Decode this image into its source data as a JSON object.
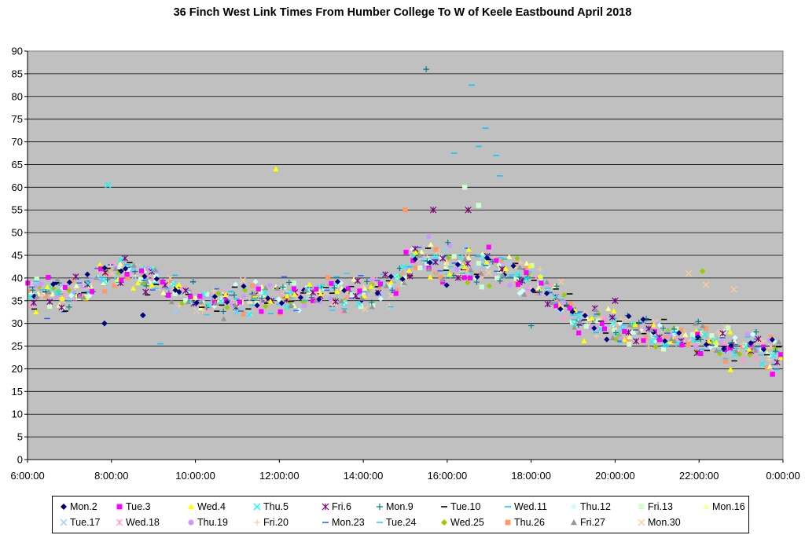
{
  "chart_data": {
    "type": "scatter",
    "title": "36 Finch West Link Times From Humber College To W of Keele Eastbound April 2018",
    "xlabel": "",
    "ylabel": "",
    "x_ticks": [
      "6:00:00",
      "8:00:00",
      "10:00:00",
      "12:00:00",
      "14:00:00",
      "16:00:00",
      "18:00:00",
      "20:00:00",
      "22:00:00",
      "0:00:00"
    ],
    "x_range_hours": [
      6,
      24
    ],
    "ylim": [
      0,
      90
    ],
    "y_ticks": [
      0,
      5,
      10,
      15,
      20,
      25,
      30,
      35,
      40,
      45,
      50,
      55,
      60,
      65,
      70,
      75,
      80,
      85,
      90
    ],
    "grid": "horizontal",
    "plot_background": "#c0c0c0",
    "legend_position": "bottom",
    "profile": {
      "hours": [
        6.0,
        7.0,
        8.0,
        9.0,
        10.0,
        11.0,
        12.0,
        13.0,
        14.0,
        14.7,
        15.3,
        16.0,
        17.0,
        18.0,
        18.5,
        19.0,
        20.0,
        21.0,
        22.0,
        23.0,
        24.0
      ],
      "typical_minutes": [
        37,
        36,
        42,
        40,
        35,
        35,
        36,
        37,
        37,
        38,
        45,
        42,
        42,
        40,
        37,
        31,
        29,
        28,
        26,
        25,
        23
      ]
    },
    "notable_points": [
      {
        "x": "15:30:00",
        "y": 86,
        "series": "Mon.9"
      },
      {
        "x": "16:35:00",
        "y": 82.5,
        "series": "Wed.11"
      },
      {
        "x": "16:45:00",
        "y": 69,
        "series": "Wed.11"
      },
      {
        "x": "16:55:00",
        "y": 73,
        "series": "Wed.11"
      },
      {
        "x": "17:10:00",
        "y": 67,
        "series": "Wed.11"
      },
      {
        "x": "17:15:00",
        "y": 62.5,
        "series": "Wed.11"
      },
      {
        "x": "16:10:00",
        "y": 67.5,
        "series": "Wed.11"
      },
      {
        "x": "16:25:00",
        "y": 60,
        "series": "Fri.13"
      },
      {
        "x": "16:45:00",
        "y": 56,
        "series": "Fri.13"
      },
      {
        "x": "11:55:00",
        "y": 64,
        "series": "Wed.4"
      },
      {
        "x": "7:55:00",
        "y": 60.5,
        "series": "Thu.5"
      },
      {
        "x": "9:10:00",
        "y": 25.5,
        "series": "Wed.11"
      },
      {
        "x": "15:40:00",
        "y": 55,
        "series": "Fri.6"
      },
      {
        "x": "16:30:00",
        "y": 55,
        "series": "Fri.6"
      },
      {
        "x": "15:00:00",
        "y": 55,
        "series": "Thu.26"
      },
      {
        "x": "22:05:00",
        "y": 41.5,
        "series": "Wed.25"
      },
      {
        "x": "21:45:00",
        "y": 41,
        "series": "Mon.30"
      },
      {
        "x": "22:10:00",
        "y": 38.5,
        "series": "Mon.30"
      },
      {
        "x": "22:50:00",
        "y": 37.5,
        "series": "Mon.30"
      },
      {
        "x": "20:00:00",
        "y": 35,
        "series": "Fri.6"
      },
      {
        "x": "23:45:00",
        "y": 18.8,
        "series": "Tue.3"
      },
      {
        "x": "22:45:00",
        "y": 19.8,
        "series": "Wed.4"
      },
      {
        "x": "18:00:00",
        "y": 29.5,
        "series": "Mon.9"
      },
      {
        "x": "8:45:00",
        "y": 31.8,
        "series": "Mon.2"
      },
      {
        "x": "7:50:00",
        "y": 30,
        "series": "Mon.2"
      },
      {
        "x": "18:55:00",
        "y": 36.5,
        "series": "Tue.10"
      }
    ],
    "series": [
      {
        "name": "Mon.2",
        "color": "#000080",
        "marker": "diamond"
      },
      {
        "name": "Tue.3",
        "color": "#ff00ff",
        "marker": "square"
      },
      {
        "name": "Wed.4",
        "color": "#ffff00",
        "marker": "triangle"
      },
      {
        "name": "Thu.5",
        "color": "#00ffff",
        "marker": "x"
      },
      {
        "name": "Fri.6",
        "color": "#800080",
        "marker": "star"
      },
      {
        "name": "Mon.9",
        "color": "#008080",
        "marker": "plus"
      },
      {
        "name": "Tue.10",
        "color": "#000000",
        "marker": "dash"
      },
      {
        "name": "Wed.11",
        "color": "#00ccff",
        "marker": "dash"
      },
      {
        "name": "Thu.12",
        "color": "#ccffff",
        "marker": "diamond"
      },
      {
        "name": "Fri.13",
        "color": "#ccffcc",
        "marker": "square"
      },
      {
        "name": "Mon.16",
        "color": "#ffff99",
        "marker": "triangle"
      },
      {
        "name": "Tue.17",
        "color": "#99ccff",
        "marker": "x"
      },
      {
        "name": "Wed.18",
        "color": "#ff99cc",
        "marker": "star"
      },
      {
        "name": "Thu.19",
        "color": "#cc99ff",
        "marker": "circle"
      },
      {
        "name": "Fri.20",
        "color": "#ffcc99",
        "marker": "plus"
      },
      {
        "name": "Mon.23",
        "color": "#3366ff",
        "marker": "dash"
      },
      {
        "name": "Tue.24",
        "color": "#33ccff",
        "marker": "dash"
      },
      {
        "name": "Wed.25",
        "color": "#99cc00",
        "marker": "diamond"
      },
      {
        "name": "Thu.26",
        "color": "#ff9966",
        "marker": "square"
      },
      {
        "name": "Fri.27",
        "color": "#969696",
        "marker": "triangle"
      },
      {
        "name": "Mon.30",
        "color": "#ffcc99",
        "marker": "x"
      }
    ]
  }
}
